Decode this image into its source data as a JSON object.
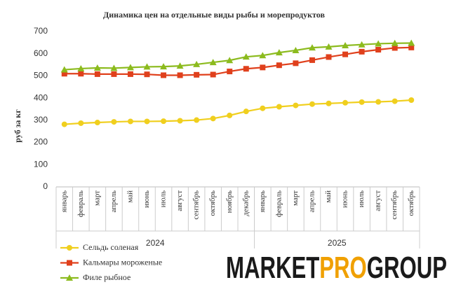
{
  "chart_data": {
    "type": "line",
    "title": "Динамика цен на отдельные виды рыбы и морепродуктов",
    "y_label": "руб за кг",
    "category_groups": [
      {
        "label": "2024",
        "categories": [
          "январь",
          "февраль",
          "март",
          "апрель",
          "май",
          "июнь",
          "июль",
          "август",
          "сентябрь",
          "октябрь",
          "ноябрь",
          "декабрь"
        ]
      },
      {
        "label": "2025",
        "categories": [
          "январь",
          "февраль",
          "март",
          "апрель",
          "май",
          "июнь",
          "июль",
          "август",
          "сентябрь",
          "октябрь"
        ]
      }
    ],
    "series": [
      {
        "name": "Сельдь соленая",
        "color": "#f0cf1e",
        "marker": "circle",
        "values": [
          282,
          287,
          290,
          293,
          295,
          295,
          296,
          298,
          301,
          308,
          322,
          340,
          354,
          361,
          367,
          373,
          376,
          379,
          382,
          383,
          386,
          391
        ]
      },
      {
        "name": "Кальмары мороженые",
        "color": "#e0401c",
        "marker": "square",
        "values": [
          510,
          510,
          508,
          508,
          508,
          507,
          503,
          503,
          505,
          506,
          520,
          532,
          538,
          548,
          557,
          571,
          585,
          597,
          609,
          618,
          626,
          628
        ]
      },
      {
        "name": "Филе рыбное",
        "color": "#8cbb1e",
        "marker": "triangle",
        "values": [
          528,
          533,
          536,
          535,
          538,
          541,
          542,
          545,
          552,
          561,
          570,
          586,
          592,
          605,
          615,
          627,
          631,
          637,
          641,
          645,
          647,
          648
        ]
      }
    ],
    "ylim": [
      0,
      700
    ],
    "yticks": [
      0,
      100,
      200,
      300,
      400,
      500,
      600,
      700
    ],
    "grid": false,
    "legend": "bottom-left"
  },
  "logo": {
    "parts": [
      "MARKET",
      "PRO",
      "GROUP"
    ]
  }
}
